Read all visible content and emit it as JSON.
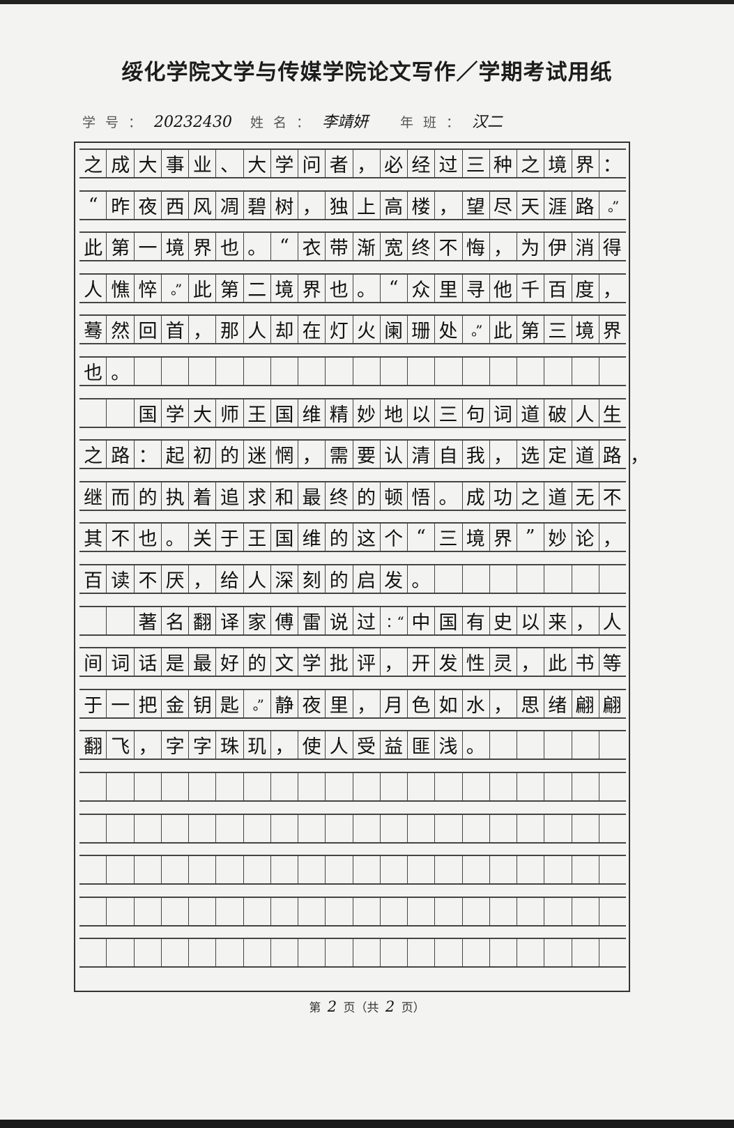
{
  "header": {
    "title": "绥化学院文学与传媒学院论文写作／学期考试用纸",
    "student_id_label": "学号：",
    "student_id": "20232430",
    "name_label": "姓名：",
    "name": "李靖妍",
    "class_label": "年班：",
    "class": "汉二"
  },
  "essay": {
    "columns": 20,
    "total_rows": 20,
    "lines": [
      "之成大事业、大学问者，必经过三种之境界：",
      "“昨夜西风凋碧树，独上高楼，望尽天涯路。”",
      "此第一境界也。“衣带渐宽终不悔，为伊消得",
      "人憔悴。”此第二境界也。“众里寻他千百度，",
      "蓦然回首，那人却在灯火阑珊处。”此第三境界",
      "也。",
      "　　国学大师王国维精妙地以三句词道破人生",
      "之路：起初的迷惘，需要认清自我，选定道路，",
      "继而的执着追求和最终的顿悟。成功之道无不",
      "其不也。关于王国维的这个“三境界”妙论，",
      "百读不厌，给人深刻的启发。",
      "　　著名翻译家傅雷说过：“中国有史以来，人",
      "间词话是最好的文学批评，开发性灵，此书等",
      "于一把金钥匙。”静夜里，月色如水，思绪翩翩",
      "翻飞，字字珠玑，使人受益匪浅。"
    ]
  },
  "footer": {
    "prefix": "第",
    "page": "2",
    "middle": "页（共",
    "total": "2",
    "suffix": "页）"
  }
}
